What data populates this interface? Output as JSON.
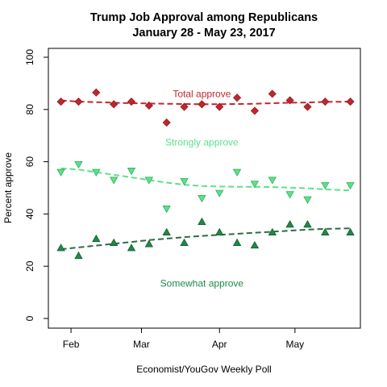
{
  "chart_data": {
    "type": "scatter",
    "title": "Trump Job Approval among Republicans",
    "subtitle": "January 28 - May 23, 2017",
    "xlabel": "Economist/YouGov Weekly Poll",
    "ylabel": "Percent approve",
    "ylim": [
      0,
      100
    ],
    "yticks": [
      0,
      20,
      40,
      60,
      80,
      100
    ],
    "xlim": [
      "2017-01-23",
      "2017-05-27"
    ],
    "xticks": [
      {
        "date": "2017-02-01",
        "label": "Feb"
      },
      {
        "date": "2017-03-01",
        "label": "Mar"
      },
      {
        "date": "2017-04-01",
        "label": "Apr"
      },
      {
        "date": "2017-05-01",
        "label": "May"
      }
    ],
    "x": [
      "2017-01-28",
      "2017-02-04",
      "2017-02-11",
      "2017-02-18",
      "2017-02-25",
      "2017-03-04",
      "2017-03-11",
      "2017-03-18",
      "2017-03-25",
      "2017-04-01",
      "2017-04-08",
      "2017-04-15",
      "2017-04-22",
      "2017-04-29",
      "2017-05-06",
      "2017-05-13",
      "2017-05-23"
    ],
    "series": [
      {
        "name": "Total approve",
        "marker": "diamond",
        "color": "#c0272d",
        "values": [
          83,
          83,
          86.5,
          82,
          83,
          81.5,
          75,
          81,
          82,
          81,
          84.5,
          79.5,
          86,
          83.5,
          81,
          83,
          83
        ],
        "trend": [
          83.5,
          83,
          82.8,
          82.6,
          82.4,
          82.3,
          82.2,
          82.1,
          82.0,
          82.0,
          82.1,
          82.2,
          82.4,
          82.6,
          82.7,
          82.9,
          83.0
        ]
      },
      {
        "name": "Strongly approve",
        "marker": "triangle-down",
        "color": "#5ee08a",
        "values": [
          56,
          59,
          56,
          53,
          56.5,
          53,
          42,
          52.5,
          46,
          48,
          56,
          51.5,
          53,
          47.5,
          45.5,
          51,
          51
        ],
        "trend": [
          57.5,
          57.0,
          56.0,
          55.0,
          54.0,
          53.0,
          52.0,
          51.2,
          50.7,
          50.5,
          50.4,
          50.4,
          50.3,
          50.1,
          49.8,
          49.4,
          49.0
        ]
      },
      {
        "name": "Somewhat approve",
        "marker": "triangle-up",
        "color": "#1f8a45",
        "values": [
          27,
          24,
          30.5,
          29,
          27,
          28.5,
          33,
          29,
          37,
          33,
          29,
          28,
          33,
          36,
          36,
          33,
          33
        ],
        "trend": [
          26.5,
          27.2,
          27.9,
          28.6,
          29.3,
          30.0,
          30.6,
          31.1,
          31.6,
          32.0,
          32.4,
          32.8,
          33.2,
          33.6,
          34.0,
          34.3,
          34.5
        ]
      }
    ],
    "annotations": [
      {
        "text": "Total approve",
        "series": 0,
        "date": "2017-03-25",
        "value": 86
      },
      {
        "text": "Strongly approve",
        "series": 1,
        "date": "2017-03-25",
        "value": 67.5
      },
      {
        "text": "Somewhat approve",
        "series": 2,
        "date": "2017-03-25",
        "value": 13.5
      }
    ],
    "grid": false,
    "legend": "none (series labelled inline)"
  }
}
